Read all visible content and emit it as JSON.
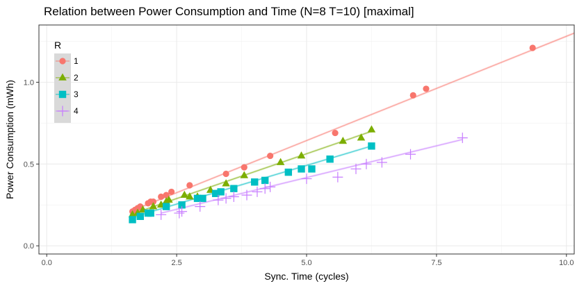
{
  "chart_data": {
    "type": "scatter",
    "title": "Relation between Power Consumption and Time (N=8 T=10) [maximal]",
    "xlabel": "Sync. Time (cycles)",
    "ylabel": "Power Consumption (mWh)",
    "xlim": [
      -0.15,
      10.15
    ],
    "ylim": [
      -0.05,
      1.35
    ],
    "x_ticks": [
      0.0,
      2.5,
      5.0,
      7.5,
      10.0
    ],
    "x_tick_labels": [
      "0.0",
      "2.5",
      "5.0",
      "7.5",
      "10.0"
    ],
    "y_ticks": [
      0.0,
      0.5,
      1.0
    ],
    "y_tick_labels": [
      "0.0",
      "0.5",
      "1.0"
    ],
    "grid": true,
    "legend": {
      "title": "R",
      "position": "top-left"
    },
    "series": [
      {
        "name": "1",
        "marker": "circle",
        "color": "#F8766D",
        "points": [
          [
            1.65,
            0.21
          ],
          [
            1.7,
            0.22
          ],
          [
            1.75,
            0.23
          ],
          [
            1.8,
            0.24
          ],
          [
            1.95,
            0.26
          ],
          [
            2.0,
            0.27
          ],
          [
            2.05,
            0.27
          ],
          [
            2.2,
            0.3
          ],
          [
            2.3,
            0.31
          ],
          [
            2.4,
            0.33
          ],
          [
            2.75,
            0.37
          ],
          [
            3.45,
            0.44
          ],
          [
            3.8,
            0.48
          ],
          [
            4.3,
            0.55
          ],
          [
            5.55,
            0.69
          ],
          [
            7.05,
            0.92
          ],
          [
            7.3,
            0.96
          ],
          [
            9.35,
            1.21
          ]
        ],
        "fit": [
          [
            1.6,
            0.21
          ],
          [
            10.15,
            1.3
          ]
        ]
      },
      {
        "name": "2",
        "marker": "triangle",
        "color": "#7CAE00",
        "points": [
          [
            1.65,
            0.19
          ],
          [
            1.75,
            0.2
          ],
          [
            1.85,
            0.22
          ],
          [
            2.05,
            0.24
          ],
          [
            2.2,
            0.25
          ],
          [
            2.3,
            0.27
          ],
          [
            2.35,
            0.28
          ],
          [
            2.65,
            0.31
          ],
          [
            2.75,
            0.3
          ],
          [
            2.9,
            0.3
          ],
          [
            3.15,
            0.34
          ],
          [
            3.45,
            0.38
          ],
          [
            3.8,
            0.43
          ],
          [
            4.5,
            0.51
          ],
          [
            4.9,
            0.55
          ],
          [
            5.7,
            0.64
          ],
          [
            6.05,
            0.66
          ],
          [
            6.25,
            0.71
          ]
        ],
        "fit": [
          [
            1.6,
            0.19
          ],
          [
            6.25,
            0.7
          ]
        ]
      },
      {
        "name": "3",
        "marker": "square",
        "color": "#00BFC4",
        "points": [
          [
            1.65,
            0.16
          ],
          [
            1.8,
            0.18
          ],
          [
            1.95,
            0.2
          ],
          [
            2.0,
            0.2
          ],
          [
            2.3,
            0.24
          ],
          [
            2.6,
            0.25
          ],
          [
            2.9,
            0.29
          ],
          [
            3.0,
            0.29
          ],
          [
            3.25,
            0.32
          ],
          [
            3.35,
            0.33
          ],
          [
            3.6,
            0.35
          ],
          [
            4.0,
            0.39
          ],
          [
            4.2,
            0.4
          ],
          [
            4.65,
            0.45
          ],
          [
            4.9,
            0.47
          ],
          [
            5.1,
            0.47
          ],
          [
            5.45,
            0.53
          ],
          [
            6.25,
            0.61
          ]
        ],
        "fit": [
          [
            1.6,
            0.17
          ],
          [
            6.25,
            0.61
          ]
        ]
      },
      {
        "name": "4",
        "marker": "plus",
        "color": "#C77CFF",
        "points": [
          [
            2.2,
            0.19
          ],
          [
            2.55,
            0.2
          ],
          [
            2.6,
            0.21
          ],
          [
            2.95,
            0.24
          ],
          [
            3.3,
            0.28
          ],
          [
            3.45,
            0.29
          ],
          [
            3.6,
            0.3
          ],
          [
            3.85,
            0.31
          ],
          [
            4.05,
            0.33
          ],
          [
            4.2,
            0.35
          ],
          [
            4.3,
            0.36
          ],
          [
            5.0,
            0.41
          ],
          [
            5.6,
            0.42
          ],
          [
            5.95,
            0.47
          ],
          [
            6.15,
            0.5
          ],
          [
            6.45,
            0.51
          ],
          [
            7.0,
            0.56
          ],
          [
            8.0,
            0.66
          ]
        ],
        "fit": [
          [
            2.2,
            0.2
          ],
          [
            8.0,
            0.65
          ]
        ]
      }
    ]
  }
}
